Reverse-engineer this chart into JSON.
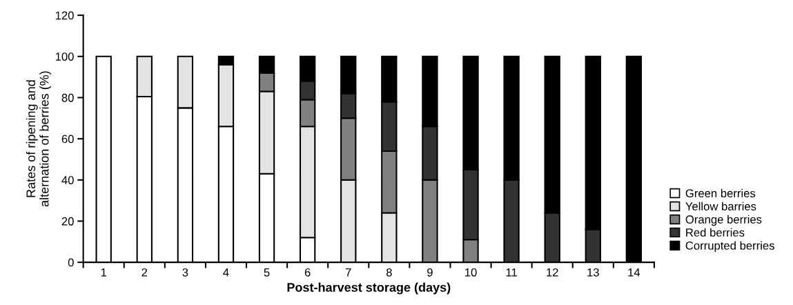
{
  "chart_data": {
    "type": "bar",
    "stacked": true,
    "categories": [
      "1",
      "2",
      "3",
      "4",
      "5",
      "6",
      "7",
      "8",
      "9",
      "10",
      "11",
      "12",
      "13",
      "14"
    ],
    "xlabel": "Post-harvest storage (days)",
    "ylabel": "Rates of ripening and\nalternation of berries (%)",
    "ylim": [
      0,
      120
    ],
    "yticks": [
      0,
      20,
      40,
      60,
      80,
      100,
      120
    ],
    "grid": false,
    "legend": "right",
    "series": [
      {
        "name": "Green berries",
        "color": "#ffffff",
        "values": [
          100,
          80.5,
          75,
          66,
          43,
          12,
          null,
          null,
          null,
          null,
          null,
          null,
          null,
          null
        ]
      },
      {
        "name": "Yellow barries",
        "color": "#e3e3e3",
        "values": [
          null,
          19.5,
          25,
          30,
          40,
          54,
          40,
          24,
          null,
          null,
          null,
          null,
          null,
          null
        ]
      },
      {
        "name": "Orange berries",
        "color": "#808080",
        "values": [
          null,
          null,
          null,
          null,
          9,
          13,
          30,
          30,
          40,
          11,
          null,
          null,
          null,
          null
        ]
      },
      {
        "name": "Red berries",
        "color": "#333333",
        "values": [
          null,
          null,
          null,
          null,
          null,
          9,
          12,
          24,
          26,
          34,
          40,
          24,
          16,
          null
        ]
      },
      {
        "name": "Corrupted berries",
        "color": "#000000",
        "values": [
          null,
          null,
          null,
          4,
          8,
          12,
          18,
          22,
          34,
          55,
          60,
          76,
          84,
          100
        ]
      }
    ]
  }
}
